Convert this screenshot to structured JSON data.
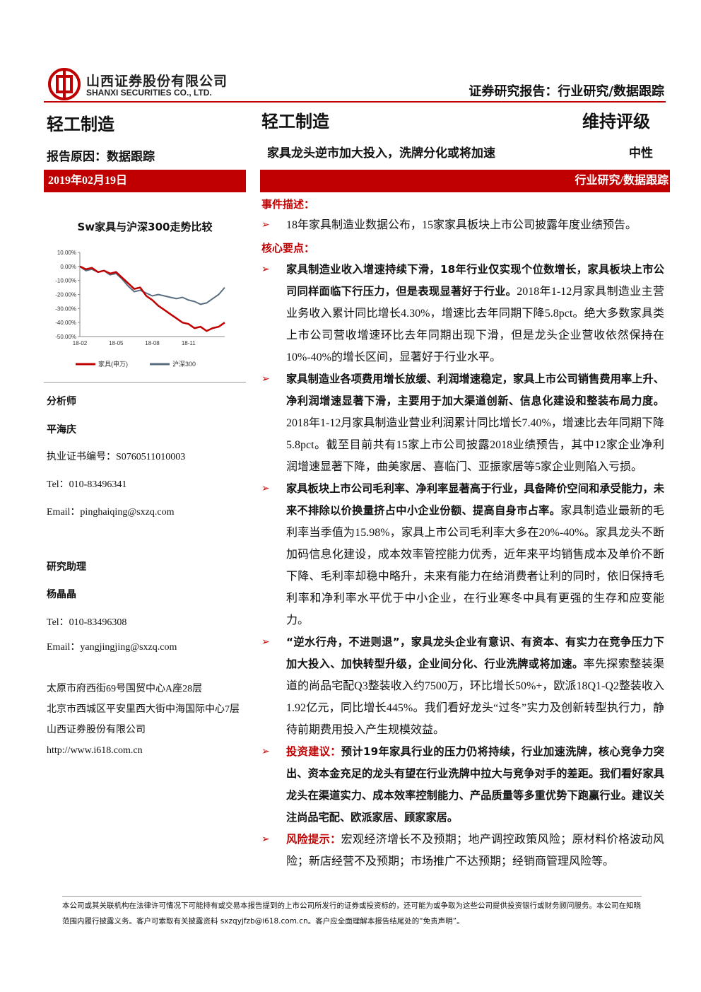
{
  "header": {
    "company_cn": "山西证券股份有限公司",
    "company_en": "SHANXI SECURITIES CO., LTD.",
    "report_type": "证券研究报告：行业研究/数据跟踪"
  },
  "left": {
    "industry": "轻工制造",
    "reason": "报告原因：数据跟踪",
    "date": "2019年02月19日",
    "chart_title": "Sw家具与沪深300走势比较",
    "analyst_heading": "分析师",
    "analyst_name": "平海庆",
    "analyst_cert": "执业证书编号：S0760511010003",
    "analyst_tel": "Tel：010-83496341",
    "analyst_email": "Email：pinghaiqing@sxzq.com",
    "assistant_heading": "研究助理",
    "assistant_name": "杨晶晶",
    "assistant_tel": "Tel：010-83496308",
    "assistant_email": "Email：yangjingjing@sxzq.com",
    "address": [
      "太原市府西街69号国贸中心A座28层",
      "北京市西城区平安里西大街中海国际中心7层",
      "山西证券股份有限公司",
      "http://www.i618.com.cn"
    ]
  },
  "right": {
    "industry": "轻工制造",
    "rating_action": "维持评级",
    "headline": "家具龙头逆市加大投入，洗牌分化或将加速",
    "rating": "中性",
    "band": "行业研究/数据跟踪",
    "event_heading": "事件描述：",
    "event": "18年家具制造业数据公布，15家家具板块上市公司披露年度业绩预告。",
    "core_heading": "核心要点：",
    "points": [
      {
        "bold": "家具制造业收入增速持续下滑，18年行业仅实现个位数增长，家具板块上市公司同样面临下行压力，但是表现显著好于行业。",
        "text": "2018年1-12月家具制造业主营业务收入累计同比增长4.30%，增速比去年同期下降5.8pct。绝大多数家具类上市公司营收增速环比去年同期出现下滑，但是龙头企业营收依然保持在10%-40%的增长区间，显著好于行业水平。"
      },
      {
        "bold": "家具制造业各项费用增长放缓、利润增速稳定，家具上市公司销售费用率上升、净利润增速显著下滑，主要用于加大渠道创新、信息化建设和整装布局力度。",
        "text": "2018年1-12月家具制造业营业利润累计同比增长7.40%，增速比去年同期下降5.8pct。截至目前共有15家上市公司披露2018业绩预告，其中12家企业净利润增速显著下降，曲美家居、喜临门、亚振家居等5家企业则陷入亏损。"
      },
      {
        "bold": "家具板块上市公司毛利率、净利率显著高于行业，具备降价空间和承受能力，未来不排除以价换量挤占中小企业份额、提高自身市占率。",
        "text": "家具制造业最新的毛利率当季值为15.98%，家具上市公司毛利率大多在20%-40%。家具龙头不断加码信息化建设，成本效率管控能力优秀，近年来平均销售成本及单价不断下降、毛利率却稳中略升，未来有能力在给消费者让利的同时，依旧保持毛利率和净利率水平优于中小企业，在行业寒冬中具有更强的生存和应变能力。"
      },
      {
        "bold": "“逆水行舟，不进则退”，家具龙头企业有意识、有资本、有实力在竞争压力下加大投入、加快转型升级，企业间分化、行业洗牌或将加速。",
        "text": "率先探索整装渠道的尚品宅配Q3整装收入约7500万，环比增长50%+，欧派18Q1-Q2整装收入1.92亿元，同比增长445%。我们看好龙头“过冬”实力及创新转型执行力，静待前期费用投入产生规模效益。"
      },
      {
        "label": "投资建议：",
        "bold": "预计19年家具行业的压力仍将持续，行业加速洗牌，核心竞争力突出、资本金充足的龙头有望在行业洗牌中拉大与竞争对手的差距。我们看好家具龙头在渠道实力、成本效率控制能力、产品质量等多重优势下跑赢行业。建议关注尚品宅配、欧派家居、顾家家居。"
      },
      {
        "label": "风险提示：",
        "text": "宏观经济增长不及预期；地产调控政策风险；原材料价格波动风险；新店经营不及预期；市场推广不达预期；经销商管理风险等。"
      }
    ]
  },
  "footer": "本公司或其关联机构在法律许可情况下可能持有或交易本报告提到的上市公司所发行的证券或投资标的，还可能为或争取为这些公司提供投资银行或财务顾问服务。本公司在知晓范围内履行披露义务。客户可索取有关披露资料 sxzqyjfzb@i618.com.cn。客户应全面理解本报告结尾处的“免责声明”。",
  "chart_data": {
    "type": "line",
    "categories": [
      "18-02",
      null,
      null,
      null,
      null,
      null,
      "18-05",
      null,
      null,
      null,
      null,
      null,
      "18-08",
      null,
      null,
      null,
      null,
      null,
      "18-11",
      null,
      null,
      null,
      null,
      null,
      null
    ],
    "series": [
      {
        "name": "家具(申万)",
        "color": "#c00000",
        "values": [
          0,
          -2,
          -1,
          -4,
          -3,
          -5,
          -4,
          -8,
          -12,
          -16,
          -15,
          -21,
          -24,
          -28,
          -31,
          -34,
          -37,
          -40,
          -41,
          -44,
          -43,
          -46,
          -44,
          -43,
          -40
        ]
      },
      {
        "name": "沪深300",
        "color": "#5a6e80",
        "values": [
          0,
          -3,
          -2,
          -4,
          -3,
          -6,
          -5,
          -9,
          -14,
          -18,
          -17,
          -19,
          -21,
          -20,
          -21,
          -22,
          -23,
          -22,
          -24,
          -25,
          -27,
          -26,
          -23,
          -20,
          -15
        ]
      }
    ],
    "ylim": [
      -50,
      10
    ],
    "yticks": [
      {
        "value": 10,
        "label": "10.00%"
      },
      {
        "value": 0,
        "label": "0.00%"
      },
      {
        "value": -10,
        "label": "-10.00%"
      },
      {
        "value": -20,
        "label": "-20.00%"
      },
      {
        "value": -30,
        "label": "-30.00%"
      },
      {
        "value": -40,
        "label": "-40.00%"
      },
      {
        "value": -50,
        "label": "-50.00%"
      }
    ]
  }
}
